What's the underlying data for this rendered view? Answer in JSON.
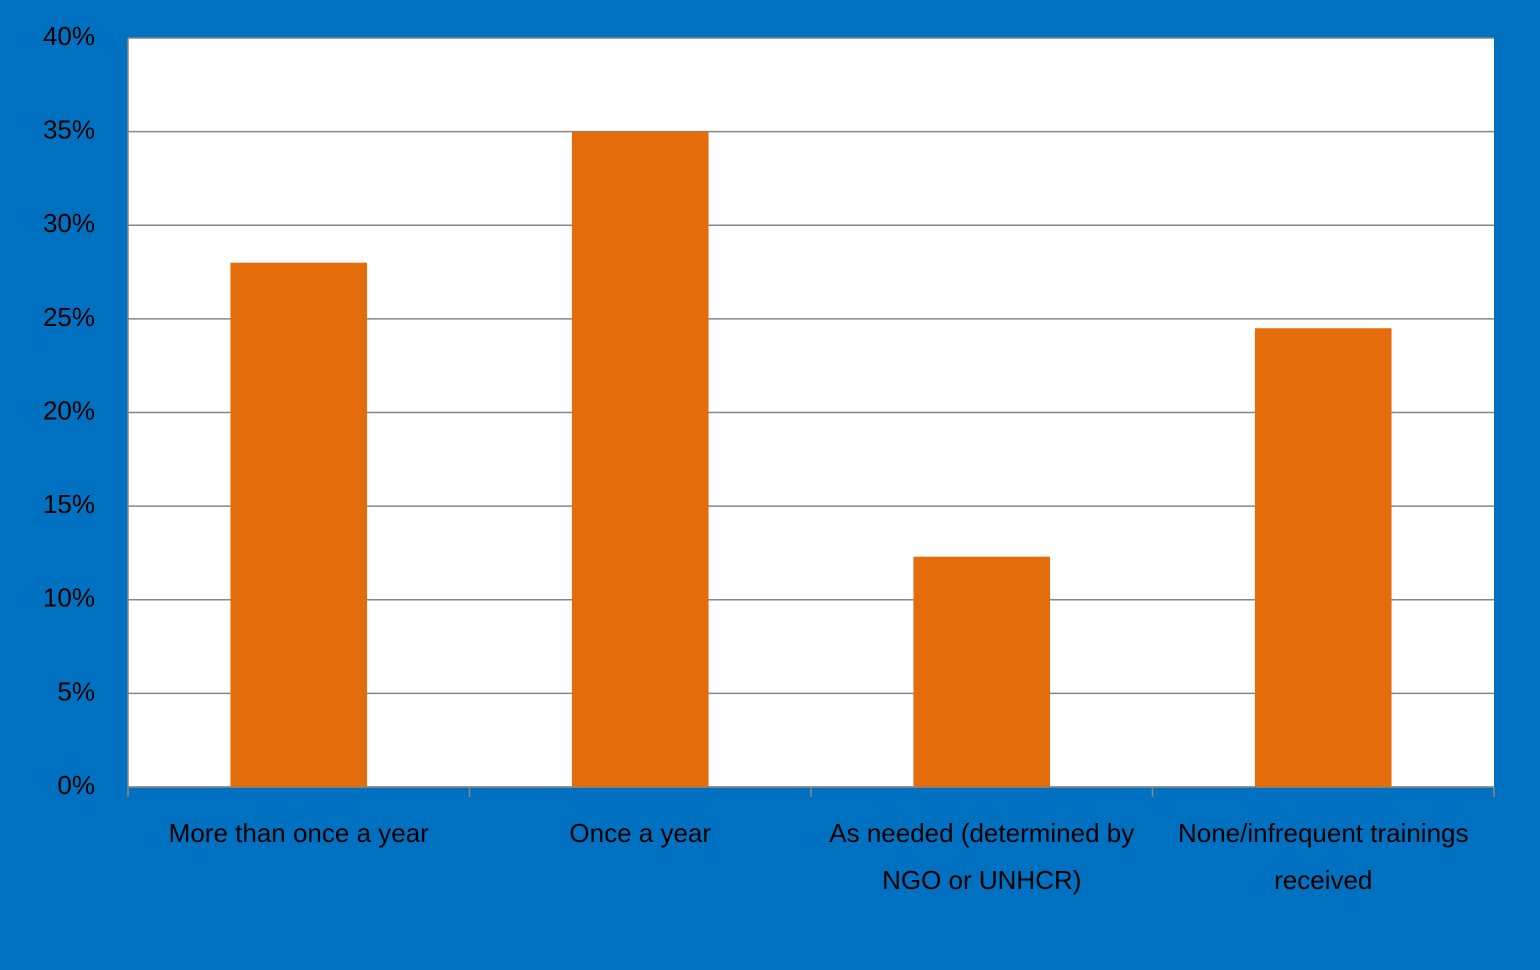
{
  "chart_data": {
    "type": "bar",
    "categories": [
      "More than once a year",
      "Once a year",
      "As needed (determined by NGO or UNHCR)",
      "None/infrequent trainings received"
    ],
    "values": [
      28,
      35,
      12.3,
      24.5
    ],
    "color": "#e46c0a",
    "ylim": [
      0,
      40
    ],
    "yticks": [
      {
        "value": 0,
        "label": "0%"
      },
      {
        "value": 5,
        "label": "5%"
      },
      {
        "value": 10,
        "label": "10%"
      },
      {
        "value": 15,
        "label": "15%"
      },
      {
        "value": 20,
        "label": "20%"
      },
      {
        "value": 25,
        "label": "25%"
      },
      {
        "value": 30,
        "label": "30%"
      },
      {
        "value": 35,
        "label": "35%"
      },
      {
        "value": 40,
        "label": "40%"
      }
    ],
    "grid": true
  }
}
